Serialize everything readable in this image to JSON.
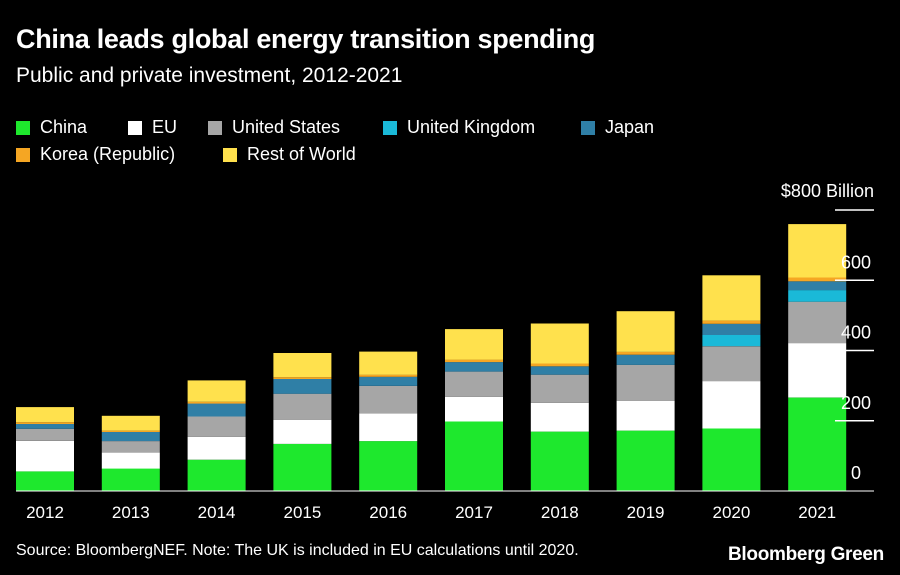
{
  "chart_data": {
    "type": "bar",
    "stacked": true,
    "title": "China leads global energy transition spending",
    "subtitle": "Public and private investment, 2012-2021",
    "categories": [
      "2012",
      "2013",
      "2014",
      "2015",
      "2016",
      "2017",
      "2018",
      "2019",
      "2020",
      "2021"
    ],
    "series": [
      {
        "name": "China",
        "color": "#1ee82d",
        "values": [
          56,
          64,
          89,
          134,
          142,
          198,
          169,
          172,
          178,
          266
        ]
      },
      {
        "name": "EU",
        "color": "#ffffff",
        "values": [
          87,
          46,
          65,
          69,
          79,
          70,
          82,
          85,
          135,
          155
        ]
      },
      {
        "name": "United States",
        "color": "#a6a6a6",
        "values": [
          34,
          32,
          58,
          74,
          78,
          72,
          80,
          102,
          99,
          118
        ]
      },
      {
        "name": "United Kingdom",
        "color": "#1ab9d8",
        "values": [
          0,
          0,
          0,
          0,
          0,
          0,
          0,
          0,
          32,
          33
        ]
      },
      {
        "name": "Japan",
        "color": "#2f7fa6",
        "values": [
          14,
          26,
          37,
          42,
          26,
          27,
          24,
          29,
          32,
          25
        ]
      },
      {
        "name": "Korea (Republic)",
        "color": "#f5a623",
        "values": [
          5,
          4,
          5,
          5,
          6,
          7,
          8,
          8,
          9,
          11
        ]
      },
      {
        "name": "Rest of World",
        "color": "#ffe14d",
        "values": [
          43,
          42,
          61,
          69,
          66,
          87,
          114,
          116,
          129,
          152
        ]
      }
    ],
    "ylim": [
      0,
      800
    ],
    "ytick_labels": [
      "0",
      "200",
      "400",
      "600",
      "$800 Billion"
    ],
    "ytick_values": [
      0,
      200,
      400,
      600,
      800
    ],
    "xlabel": "",
    "ylabel": "",
    "legend_position": "top-left",
    "grid": false
  },
  "footer": {
    "source": "Source: BloombergNEF. Note: The UK is included in EU calculations until 2020.",
    "brand": "Bloomberg Green"
  }
}
